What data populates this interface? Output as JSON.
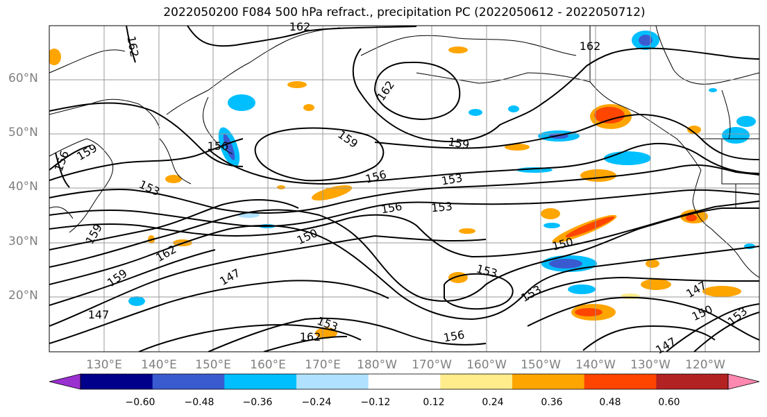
{
  "title": "2022050200 F084 500 hPa refract., precipitation PC (2022050612 - 2022050712)",
  "lat_labels": [
    "60°N",
    "50°N",
    "40°N",
    "30°N",
    "20°N"
  ],
  "lon_labels": [
    "130°E",
    "140°E",
    "150°E",
    "160°E",
    "170°E",
    "180°W",
    "170°W",
    "160°W",
    "150°W",
    "140°W",
    "130°W",
    "120°W"
  ],
  "contour_labels": [
    "162",
    "162",
    "162",
    "162",
    "159",
    "159",
    "159",
    "159",
    "159",
    "156",
    "156",
    "156",
    "156",
    "156",
    "153",
    "153",
    "153",
    "153",
    "153",
    "153",
    "150",
    "150",
    "150",
    "147",
    "147",
    "147",
    "147",
    "162",
    "162",
    "153"
  ],
  "colorbar": {
    "ticks": [
      "−0.60",
      "−0.48",
      "−0.36",
      "−0.24",
      "−0.12",
      "0.12",
      "0.24",
      "0.36",
      "0.48",
      "0.60"
    ],
    "colors": [
      "#9b30d0",
      "#00008b",
      "#3a5bd0",
      "#00bfff",
      "#b0e2ff",
      "#ffffff",
      "#ffec8b",
      "#ffa500",
      "#ff4500",
      "#b22222",
      "#ff88b0"
    ]
  }
}
